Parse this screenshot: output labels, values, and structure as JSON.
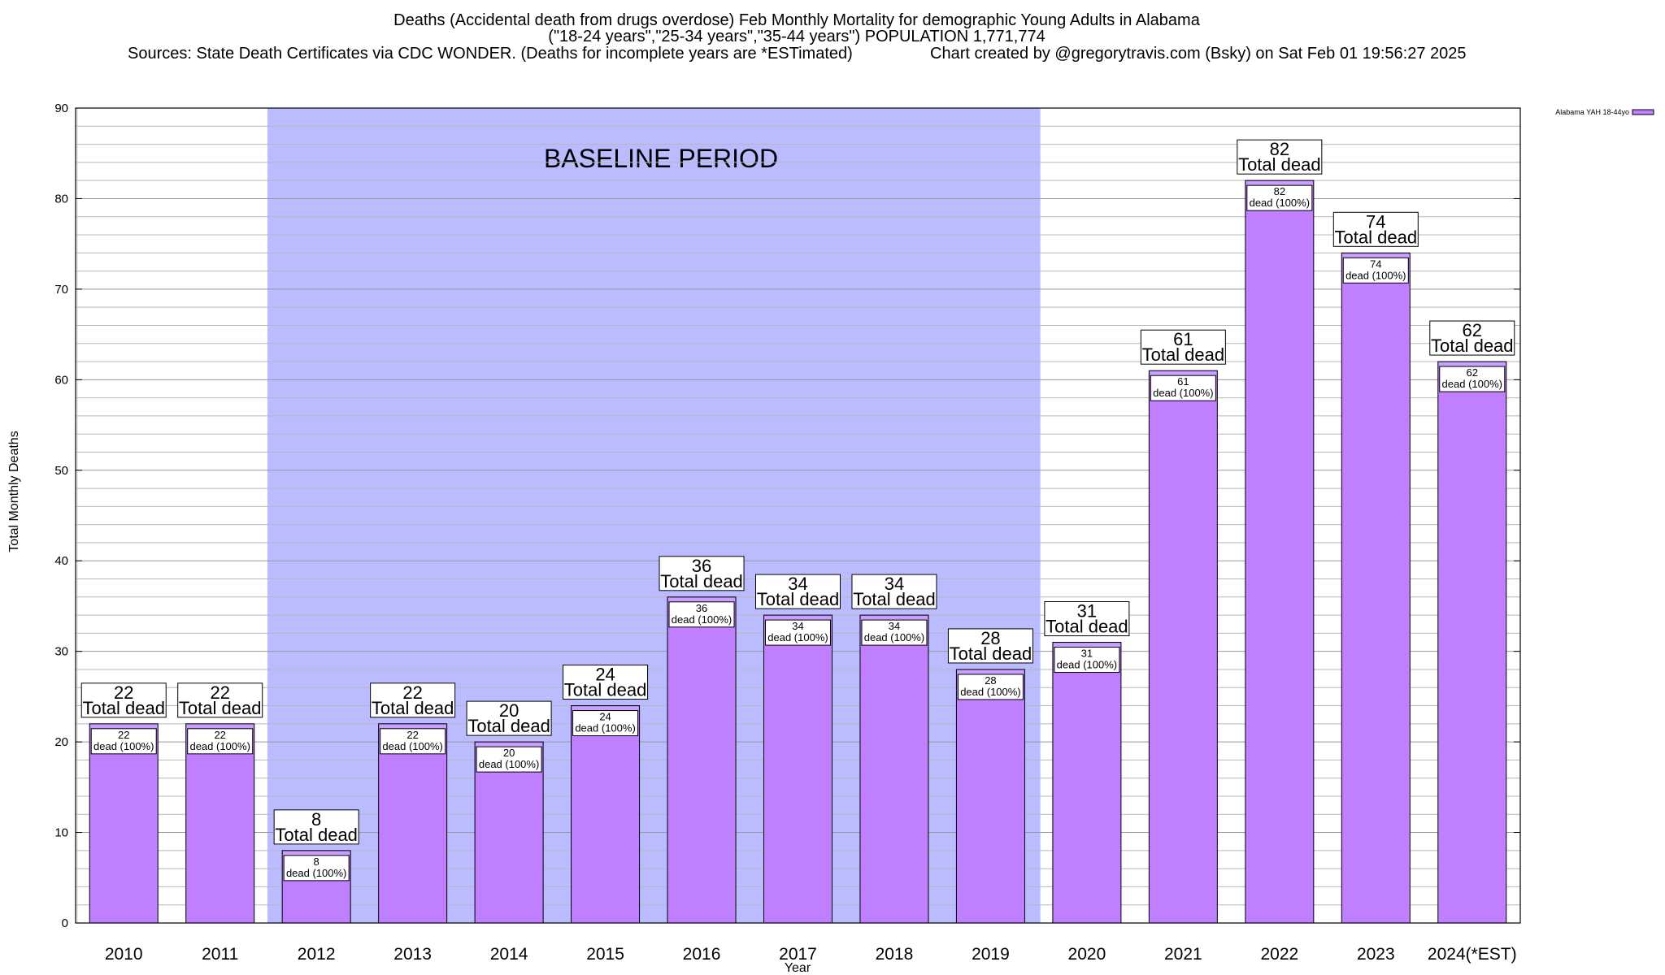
{
  "chart_data": {
    "type": "bar",
    "title_lines": [
      "Deaths (Accidental death from drugs overdose) Feb Monthly Mortality for demographic Young Adults in Alabama",
      "(\"18-24 years\",\"25-34 years\",\"35-44 years\") POPULATION 1,771,774"
    ],
    "sources_text": "Sources: State Death Certificates via CDC WONDER. (Deaths for incomplete years are *ESTimated)",
    "credit_text": "Chart created by @gregorytravis.com (Bsky) on Sat Feb 01 19:56:27 2025",
    "xlabel": "Year",
    "ylabel": "Total Monthly Deaths",
    "ylim": [
      0,
      90
    ],
    "y_ticks": [
      0,
      10,
      20,
      30,
      40,
      50,
      60,
      70,
      80,
      90
    ],
    "grid": true,
    "legend_position": "top-right",
    "series": [
      {
        "name": "Alabama YAH 18-44yo",
        "color": "#bf7fff",
        "values": [
          22,
          22,
          8,
          22,
          20,
          24,
          36,
          34,
          34,
          28,
          31,
          61,
          82,
          74,
          62
        ]
      }
    ],
    "categories": [
      "2010",
      "2011",
      "2012",
      "2013",
      "2014",
      "2015",
      "2016",
      "2017",
      "2018",
      "2019",
      "2020",
      "2021",
      "2022",
      "2023",
      "2024(*EST)"
    ],
    "bar_total_suffix": "Total dead",
    "bar_inner_suffix": "dead (100%)",
    "baseline_band": {
      "label": "BASELINE PERIOD",
      "from_category": "2012",
      "to_category": "2019",
      "color": "#bbbbff"
    },
    "colors": {
      "bar_fill": "#bf7fff",
      "bar_top": "#c8a0ff",
      "band": "#bbbbff",
      "grid": "#aaaaaa"
    }
  }
}
